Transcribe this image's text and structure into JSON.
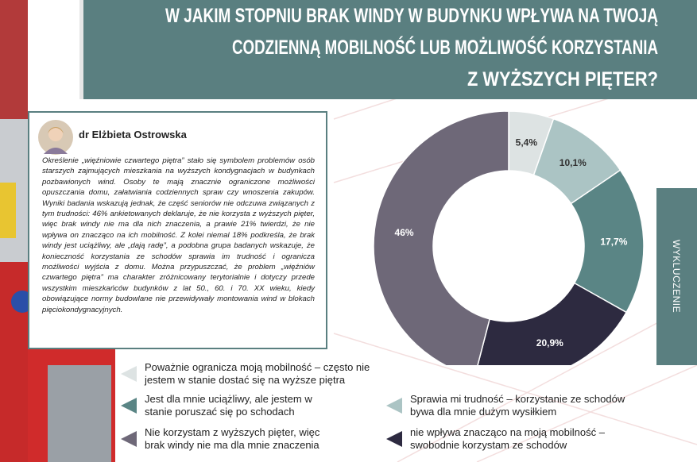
{
  "expert": {
    "name": "dr Elżbieta Ostrowska",
    "text": "Określenie „więźniowie czwartego piętra” stało się symbolem problemów osób starszych zajmujących mieszkania na wyższych kondygnacjach w budynkach pozbawionych wind. Osoby te mają znacznie ograniczone możliwości opuszczania domu, załatwiania codziennych spraw czy wnoszenia zakupów. Wyniki badania wskazują jednak, że część seniorów nie odczuwa związanych z tym trudności: 46% ankietowanych deklaruje, że nie korzysta z wyższych pięter, więc brak windy nie ma dla nich znaczenia, a prawie 21% twierdzi, że nie wpływa on znacząco na ich mobilność. Z kolei niemal 18% podkreśla, że brak windy jest uciążliwy, ale „dają radę”, a podobna grupa badanych wskazuje, że konieczność korzystania ze schodów sprawia im trudność i ogranicza możliwości wyjścia z domu. Można przypuszczać, że problem „więźniów czwartego piętra” ma charakter zróżnicowany terytorialnie i dotyczy przede wszystkim mieszkańców budynków z lat 50., 60. i 70. XX wieku, kiedy obowiązujące normy budowlane nie przewidywały montowania wind w blokach pięciokondygnacyjnych."
  },
  "side_tab": "WYKLUCZENIE",
  "chart_data": {
    "type": "pie",
    "title": [
      "W JAKIM STOPNIU BRAK WINDY W BUDYNKU WPŁYWA NA TWOJĄ",
      "CODZIENNĄ MOBILNOŚĆ LUB MOŻLIWOŚĆ KORZYSTANIA",
      "Z WYŻSZYCH PIĘTER?"
    ],
    "categories": [
      "Poważnie ogranicza moją mobilność – często nie jestem w stanie dostać się na wyższe piętra",
      "Sprawia mi trudność – korzystanie ze schodów bywa dla mnie dużym wysiłkiem",
      "Jest dla mnie uciążliwy, ale jestem w stanie poruszać się po schodach",
      " nie wpływa znacząco na moją mobilność – swobodnie korzystam ze schodów",
      "Nie korzystam z wyższych pięter, więc brak windy nie ma dla mnie znaczenia"
    ],
    "values": [
      5.4,
      10.1,
      17.7,
      20.9,
      46
    ],
    "value_labels": [
      "5,4%",
      "10,1%",
      "17,7%",
      "20,9%",
      "46%"
    ],
    "colors": [
      "#dde3e3",
      "#abc4c4",
      "#5a8585",
      "#2d2a40",
      "#6e6878"
    ]
  }
}
